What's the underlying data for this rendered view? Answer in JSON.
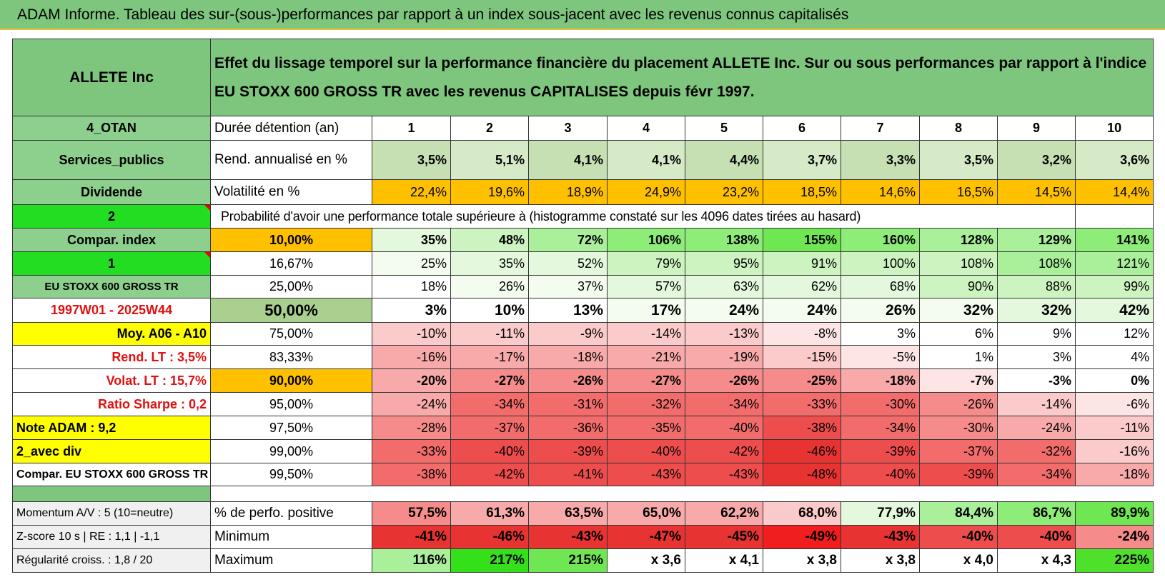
{
  "title": "ADAM Informe. Tableau des sur-(sous-)performances par rapport à un index sous-jacent avec les revenus connus capitalisés",
  "header": {
    "company": "ALLETE Inc",
    "description": "Effet du lissage temporel sur la performance financière du placement ALLETE Inc. Sur ou sous performances par rapport à l'indice EU STOXX 600 GROSS TR avec les revenus CAPITALISES depuis févr 1997."
  },
  "rows": [
    {
      "label": "4_OTAN",
      "param": "Durée détention (an)",
      "cells": [
        1,
        2,
        3,
        4,
        5,
        6,
        7,
        8,
        9,
        10
      ]
    },
    {
      "label": "Services_publics",
      "param": "Rend. annualisé en %",
      "cells": [
        "3,5%",
        "5,1%",
        "4,1%",
        "4,1%",
        "4,4%",
        "3,7%",
        "3,3%",
        "3,5%",
        "3,2%",
        "3,6%"
      ]
    },
    {
      "label": "Dividende",
      "param": "Volatilité en %",
      "cells": [
        "22,4%",
        "19,6%",
        "18,9%",
        "24,9%",
        "23,2%",
        "18,5%",
        "14,6%",
        "16,5%",
        "14,5%",
        "14,4%"
      ]
    },
    {
      "label": "2",
      "text": "Probabilité d'avoir une performance totale supérieure à (histogramme constaté sur les 4096 dates tirées au hasard)"
    },
    {
      "label": "Compar. index",
      "param": "10,00%",
      "cells": [
        "35%",
        "48%",
        "72%",
        "106%",
        "138%",
        "155%",
        "160%",
        "128%",
        "129%",
        "141%"
      ]
    },
    {
      "label": "1",
      "param": "16,67%",
      "cells": [
        "25%",
        "35%",
        "52%",
        "79%",
        "95%",
        "91%",
        "100%",
        "108%",
        "108%",
        "121%"
      ]
    },
    {
      "label": "EU STOXX 600 GROSS TR",
      "param": "25,00%",
      "cells": [
        "18%",
        "26%",
        "37%",
        "57%",
        "63%",
        "62%",
        "68%",
        "90%",
        "88%",
        "99%"
      ]
    },
    {
      "label": "1997W01 - 2025W44",
      "param": "50,00%",
      "cells": [
        "3%",
        "10%",
        "13%",
        "17%",
        "24%",
        "24%",
        "26%",
        "32%",
        "32%",
        "42%"
      ]
    },
    {
      "label": "Moy. A06 - A10",
      "param": "75,00%",
      "cells": [
        "-10%",
        "-11%",
        "-9%",
        "-14%",
        "-13%",
        "-8%",
        "3%",
        "6%",
        "9%",
        "12%"
      ]
    },
    {
      "label": "Rend. LT :   3,5%",
      "param": "83,33%",
      "cells": [
        "-16%",
        "-17%",
        "-18%",
        "-21%",
        "-19%",
        "-15%",
        "-5%",
        "1%",
        "3%",
        "4%"
      ]
    },
    {
      "label": "Volat. LT :   15,7%",
      "param": "90,00%",
      "cells": [
        "-20%",
        "-27%",
        "-26%",
        "-27%",
        "-26%",
        "-25%",
        "-18%",
        "-7%",
        "-3%",
        "0%"
      ]
    },
    {
      "label": "Ratio Sharpe :    0,2",
      "param": "95,00%",
      "cells": [
        "-24%",
        "-34%",
        "-31%",
        "-32%",
        "-34%",
        "-33%",
        "-30%",
        "-26%",
        "-14%",
        "-6%"
      ]
    },
    {
      "label": "Note ADAM : 9,2",
      "param": "97,50%",
      "cells": [
        "-28%",
        "-37%",
        "-36%",
        "-35%",
        "-40%",
        "-38%",
        "-34%",
        "-30%",
        "-24%",
        "-11%"
      ]
    },
    {
      "label": "2_avec div",
      "param": "99,00%",
      "cells": [
        "-33%",
        "-40%",
        "-39%",
        "-40%",
        "-42%",
        "-46%",
        "-39%",
        "-37%",
        "-32%",
        "-16%"
      ]
    },
    {
      "label": "Compar. EU STOXX 600 GROSS TR",
      "param": "99,50%",
      "cells": [
        "-38%",
        "-42%",
        "-41%",
        "-43%",
        "-43%",
        "-48%",
        "-40%",
        "-39%",
        "-34%",
        "-18%"
      ]
    }
  ],
  "summary_rows": [
    {
      "label": "Momentum A/V : 5 (10=neutre)",
      "param": "% de perfo. positive",
      "cells": [
        "57,5%",
        "61,3%",
        "63,5%",
        "65,0%",
        "62,2%",
        "68,0%",
        "77,9%",
        "84,4%",
        "86,7%",
        "89,9%"
      ]
    },
    {
      "label": "Z-score 10 s | RE : 1,1 | -1,1",
      "param": "Minimum",
      "cells": [
        "-41%",
        "-46%",
        "-43%",
        "-47%",
        "-45%",
        "-49%",
        "-43%",
        "-40%",
        "-40%",
        "-24%"
      ]
    },
    {
      "label": "Régularité croiss. : 1,8 / 20",
      "param": "Maximum",
      "cells": [
        "116%",
        "217%",
        "215%",
        "x 3,6",
        "x 4,1",
        "x 3,8",
        "x 3,8",
        "x 4,0",
        "x 4,3",
        "225%"
      ]
    }
  ]
}
